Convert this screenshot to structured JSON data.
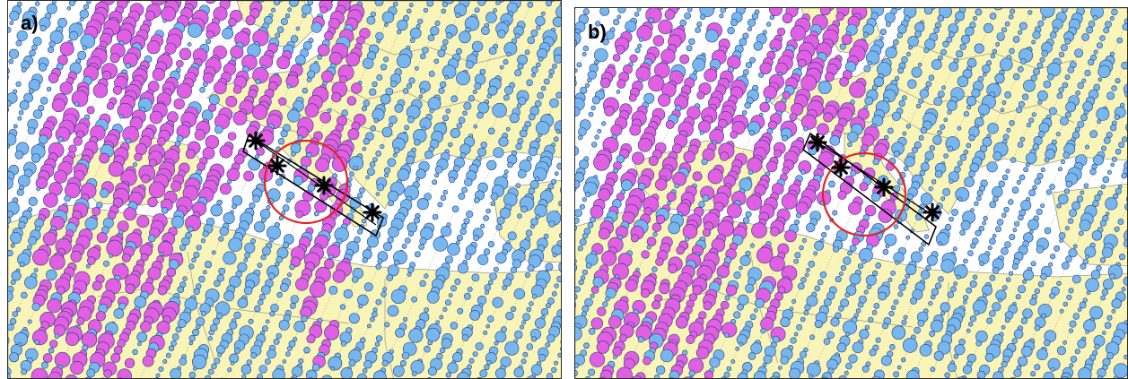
{
  "panels": [
    {
      "label": "a)"
    },
    {
      "label": "b)"
    }
  ],
  "colors": {
    "land": "#f9f4b7",
    "sea": "#ffffff",
    "border": "#9a9a90",
    "track": "#6f6f6f",
    "footprint_small": "#77b6ee",
    "footprint_large": "#e05fe2",
    "footprint_edge": "#26417a",
    "highlight_circle": "#e32424",
    "corridor": "#000000"
  },
  "icons": {
    "station": "asterisk-icon"
  }
}
